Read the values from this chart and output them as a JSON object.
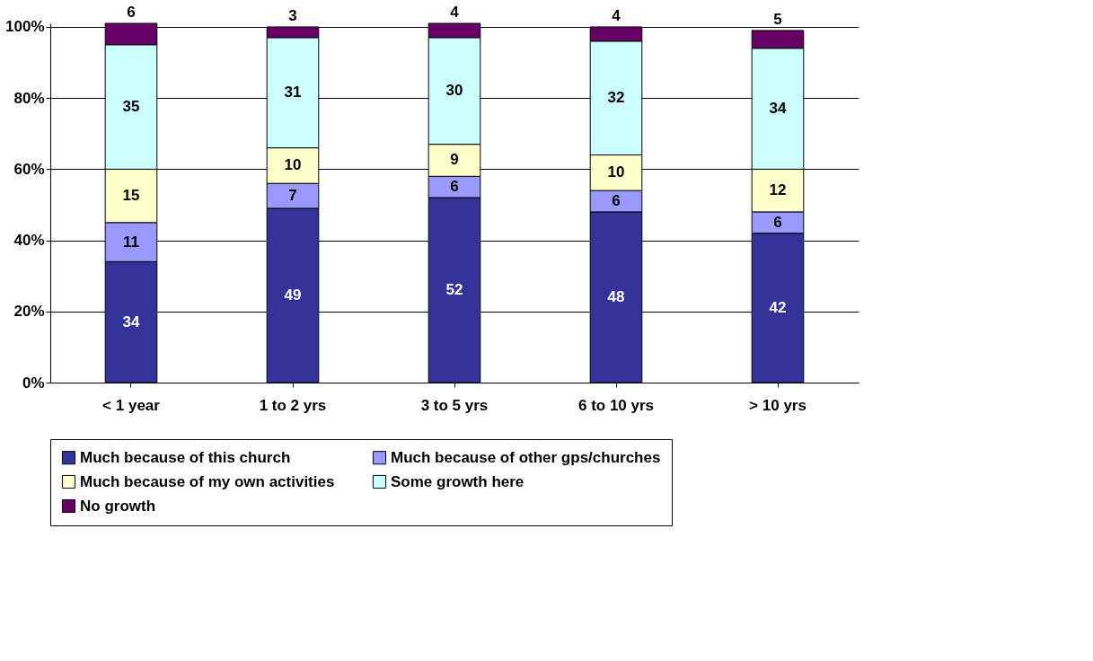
{
  "chart_data": {
    "type": "bar",
    "stacked": true,
    "data_labels": true,
    "grid": "y",
    "legend": "bottom",
    "categories": [
      "< 1 year",
      "1 to 2 yrs",
      "3 to 5 yrs",
      "6 to 10 yrs",
      "> 10 yrs"
    ],
    "ylim": [
      0,
      101
    ],
    "yticks": [
      {
        "value": 0,
        "label": "0%"
      },
      {
        "value": 20,
        "label": "20%"
      },
      {
        "value": 40,
        "label": "40%"
      },
      {
        "value": 60,
        "label": "60%"
      },
      {
        "value": 80,
        "label": "80%"
      },
      {
        "value": 100,
        "label": "100%"
      }
    ],
    "series": [
      {
        "name": "Much because of this church",
        "color": "#333399",
        "values": [
          34,
          49,
          52,
          48,
          42
        ]
      },
      {
        "name": "Much because of other gps/churches",
        "color": "#9999ff",
        "values": [
          11,
          7,
          6,
          6,
          6
        ]
      },
      {
        "name": "Much because of my own activities",
        "color": "#ffffcc",
        "values": [
          15,
          10,
          9,
          10,
          12
        ]
      },
      {
        "name": "Some growth here",
        "color": "#ccffff",
        "values": [
          35,
          31,
          30,
          32,
          34
        ]
      },
      {
        "name": "No growth",
        "color": "#660066",
        "values": [
          6,
          3,
          4,
          4,
          5
        ]
      }
    ]
  }
}
